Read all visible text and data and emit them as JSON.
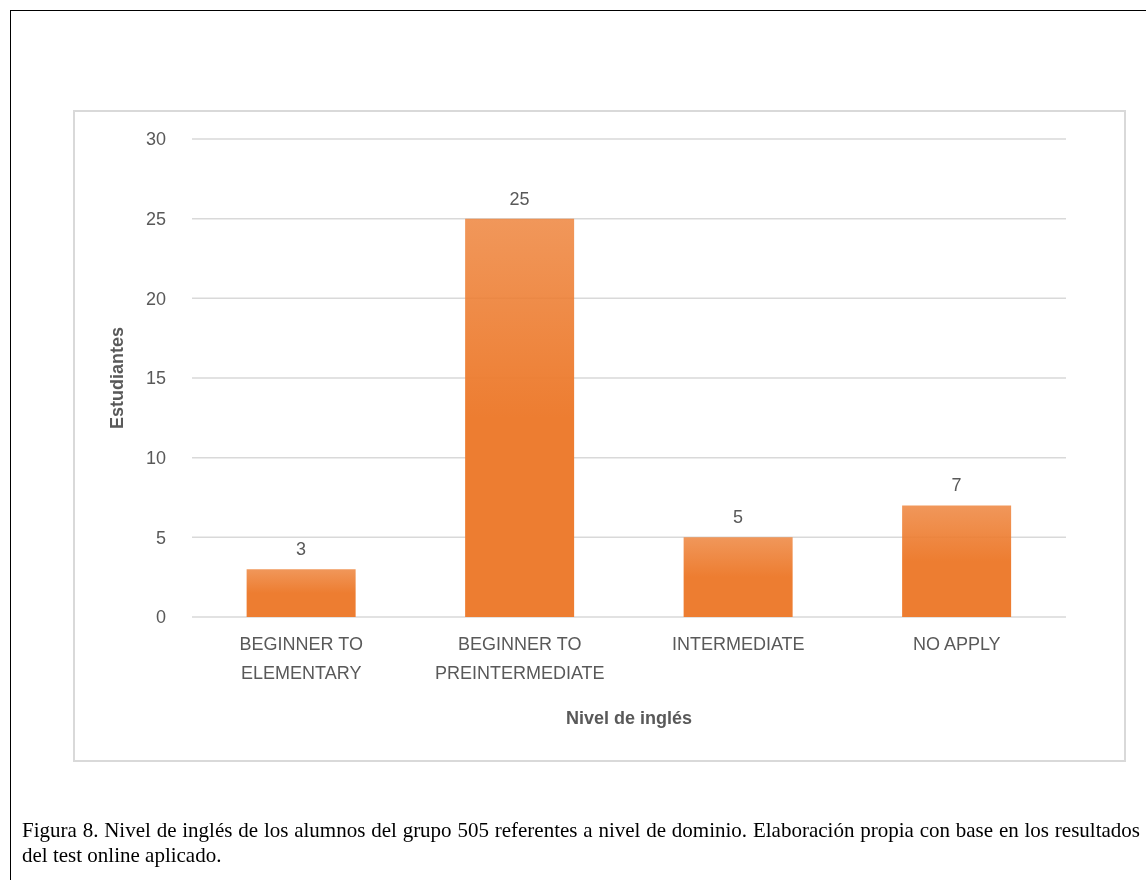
{
  "chart_data": {
    "type": "bar",
    "categories": [
      "BEGINNER TO ELEMENTARY",
      "BEGINNER TO PREINTERMEDIATE",
      "INTERMEDIATE",
      "NO APPLY"
    ],
    "values": [
      3,
      25,
      5,
      7
    ],
    "color": "#ed7d31",
    "xlabel": "Nivel de inglés",
    "ylabel": "Estudiantes",
    "ylim": [
      0,
      30
    ],
    "yticks": [
      0,
      5,
      10,
      15,
      20,
      25,
      30
    ],
    "grid": "y",
    "data_labels": true,
    "legend": false,
    "annotations": [
      "Figura 8. Nivel de inglés de los alumnos del grupo 505 referentes a nivel de dominio. Elaboración propia con base en los resultados del test online aplicado."
    ]
  }
}
